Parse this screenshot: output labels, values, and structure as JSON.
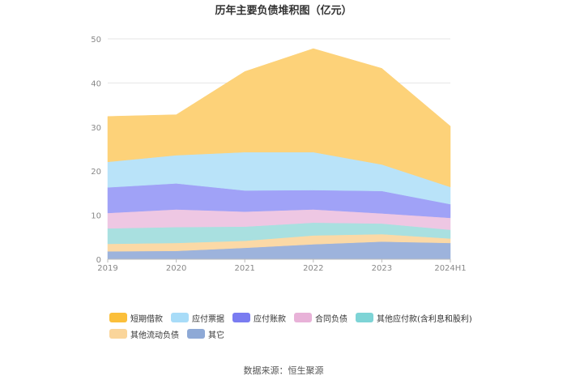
{
  "chart_data": {
    "type": "area",
    "stacked": true,
    "title": "历年主要负债堆积图（亿元）",
    "categories": [
      "2019",
      "2020",
      "2021",
      "2022",
      "2023",
      "2024H1"
    ],
    "ylim": [
      0,
      50
    ],
    "yticks": [
      "0",
      "10",
      "20",
      "30",
      "40",
      "50"
    ],
    "grid": true,
    "legend_position": "bottom",
    "series": [
      {
        "name": "其它",
        "color": "#9db3dc",
        "values": [
          1.8,
          1.9,
          2.6,
          3.4,
          4.0,
          3.7
        ]
      },
      {
        "name": "其他流动负债",
        "color": "#fbd9a6",
        "values": [
          1.7,
          1.8,
          1.6,
          2.0,
          1.7,
          1.0
        ]
      },
      {
        "name": "其他应付款(含利息和股利)",
        "color": "#a9e0e0",
        "values": [
          3.5,
          3.6,
          3.2,
          2.9,
          2.4,
          2.0
        ]
      },
      {
        "name": "合同负债",
        "color": "#eec7e3",
        "values": [
          3.5,
          4.0,
          3.4,
          3.0,
          2.3,
          2.7
        ]
      },
      {
        "name": "应付账款",
        "color": "#a0a2f7",
        "values": [
          5.8,
          5.9,
          4.8,
          4.4,
          5.1,
          3.1
        ]
      },
      {
        "name": "应付票据",
        "color": "#b9e3f9",
        "values": [
          5.8,
          6.4,
          8.7,
          8.6,
          6.0,
          3.9
        ]
      },
      {
        "name": "短期借款",
        "color": "#fdd279",
        "values": [
          10.3,
          9.2,
          18.3,
          23.5,
          21.8,
          13.8
        ]
      }
    ],
    "legend_order": [
      "短期借款",
      "应付票据",
      "应付账款",
      "合同负债",
      "其他应付款(含利息和股利)",
      "其他流动负债",
      "其它"
    ],
    "legend_colors": {
      "短期借款": "#fbbf3a",
      "应付票据": "#a8dcf8",
      "应付账款": "#7a7cf1",
      "合同负债": "#e8b2d8",
      "其他应付款(含利息和股利)": "#7ed4d6",
      "其他流动负债": "#fad59a",
      "其它": "#8ea9d6"
    }
  },
  "source": "数据来源：恒生聚源"
}
